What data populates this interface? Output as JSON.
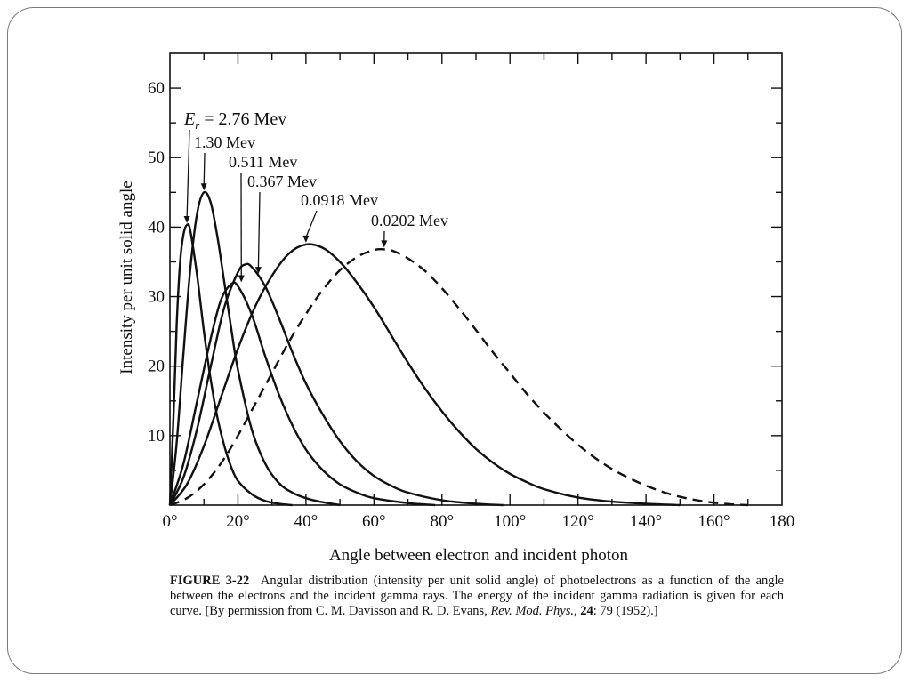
{
  "chart_data": {
    "type": "line",
    "title": "",
    "xlabel": "Angle between electron and incident photon",
    "ylabel": "Intensity per unit solid angle",
    "xlim": [
      0,
      180
    ],
    "ylim": [
      0,
      65
    ],
    "x_ticks": [
      0,
      20,
      40,
      60,
      80,
      100,
      120,
      140,
      160,
      180
    ],
    "x_tick_labels": [
      "0°",
      "20°",
      "40°",
      "60°",
      "80°",
      "100°",
      "120°",
      "140°",
      "160°",
      "180"
    ],
    "y_ticks": [
      10,
      20,
      30,
      40,
      50,
      60
    ],
    "y_tick_labels": [
      "10",
      "20",
      "30",
      "40",
      "50",
      "60"
    ],
    "grid": false,
    "series": [
      {
        "name": "E_r = 2.76 Mev",
        "style": "solid",
        "points": [
          [
            0,
            0
          ],
          [
            1,
            12
          ],
          [
            2,
            26
          ],
          [
            3,
            35
          ],
          [
            4,
            39
          ],
          [
            5,
            40.3
          ],
          [
            6,
            39.5
          ],
          [
            8,
            33
          ],
          [
            10,
            25
          ],
          [
            12,
            18
          ],
          [
            14,
            12.5
          ],
          [
            16,
            8.5
          ],
          [
            18,
            5.5
          ],
          [
            20,
            3.5
          ],
          [
            24,
            1.6
          ],
          [
            28,
            0.6
          ],
          [
            32,
            0.2
          ],
          [
            36,
            0
          ]
        ]
      },
      {
        "name": "1.30 Mev",
        "style": "solid",
        "points": [
          [
            0,
            0
          ],
          [
            2,
            9
          ],
          [
            4,
            22
          ],
          [
            6,
            34
          ],
          [
            8,
            42
          ],
          [
            10,
            45
          ],
          [
            12,
            43.5
          ],
          [
            14,
            38.5
          ],
          [
            16,
            32
          ],
          [
            18,
            25.5
          ],
          [
            20,
            19.5
          ],
          [
            24,
            11
          ],
          [
            28,
            6
          ],
          [
            32,
            3.2
          ],
          [
            36,
            1.8
          ],
          [
            40,
            1
          ],
          [
            44,
            0.5
          ],
          [
            50,
            0
          ]
        ]
      },
      {
        "name": "0.511 Mev",
        "style": "solid",
        "points": [
          [
            0,
            0
          ],
          [
            4,
            6
          ],
          [
            8,
            15
          ],
          [
            12,
            24
          ],
          [
            15,
            29.5
          ],
          [
            18,
            31.8
          ],
          [
            20,
            31.5
          ],
          [
            24,
            27.5
          ],
          [
            28,
            21.5
          ],
          [
            32,
            16
          ],
          [
            36,
            11.5
          ],
          [
            40,
            8
          ],
          [
            45,
            5
          ],
          [
            50,
            3
          ],
          [
            55,
            1.8
          ],
          [
            60,
            1
          ],
          [
            70,
            0.3
          ],
          [
            78,
            0
          ]
        ]
      },
      {
        "name": "0.367 Mev",
        "style": "solid",
        "points": [
          [
            0,
            0
          ],
          [
            4,
            4
          ],
          [
            8,
            11
          ],
          [
            12,
            20
          ],
          [
            16,
            28.5
          ],
          [
            20,
            33.5
          ],
          [
            22,
            34.6
          ],
          [
            24,
            34.3
          ],
          [
            28,
            31.5
          ],
          [
            32,
            27
          ],
          [
            36,
            22
          ],
          [
            40,
            17.5
          ],
          [
            45,
            13
          ],
          [
            50,
            9.2
          ],
          [
            55,
            6.3
          ],
          [
            60,
            4.2
          ],
          [
            65,
            2.8
          ],
          [
            70,
            1.8
          ],
          [
            80,
            0.7
          ],
          [
            90,
            0.2
          ],
          [
            98,
            0
          ]
        ]
      },
      {
        "name": "0.0918 Mev",
        "style": "solid",
        "points": [
          [
            0,
            0
          ],
          [
            5,
            3
          ],
          [
            10,
            8.5
          ],
          [
            15,
            15.5
          ],
          [
            20,
            22.5
          ],
          [
            25,
            28.5
          ],
          [
            30,
            33
          ],
          [
            35,
            36.2
          ],
          [
            40,
            37.5
          ],
          [
            45,
            37
          ],
          [
            50,
            35
          ],
          [
            55,
            32
          ],
          [
            60,
            28.5
          ],
          [
            65,
            24.5
          ],
          [
            70,
            20.5
          ],
          [
            75,
            16.8
          ],
          [
            80,
            13.5
          ],
          [
            85,
            10.6
          ],
          [
            90,
            8.1
          ],
          [
            95,
            6.1
          ],
          [
            100,
            4.5
          ],
          [
            105,
            3.3
          ],
          [
            110,
            2.3
          ],
          [
            120,
            1.1
          ],
          [
            130,
            0.5
          ],
          [
            140,
            0.2
          ],
          [
            150,
            0
          ]
        ]
      },
      {
        "name": "0.0202 Mev",
        "style": "dashed",
        "points": [
          [
            0,
            0
          ],
          [
            5,
            1
          ],
          [
            10,
            3
          ],
          [
            15,
            6
          ],
          [
            20,
            10
          ],
          [
            25,
            14.5
          ],
          [
            30,
            19
          ],
          [
            35,
            23.5
          ],
          [
            40,
            27.5
          ],
          [
            45,
            31
          ],
          [
            50,
            33.8
          ],
          [
            55,
            35.7
          ],
          [
            60,
            36.7
          ],
          [
            63,
            36.8
          ],
          [
            66,
            36.5
          ],
          [
            70,
            35.5
          ],
          [
            75,
            33.7
          ],
          [
            80,
            31.2
          ],
          [
            85,
            28.3
          ],
          [
            90,
            25.2
          ],
          [
            95,
            22
          ],
          [
            100,
            19
          ],
          [
            105,
            16
          ],
          [
            110,
            13.3
          ],
          [
            115,
            10.9
          ],
          [
            120,
            8.7
          ],
          [
            125,
            6.8
          ],
          [
            130,
            5.2
          ],
          [
            135,
            3.9
          ],
          [
            140,
            2.8
          ],
          [
            145,
            1.9
          ],
          [
            150,
            1.2
          ],
          [
            155,
            0.7
          ],
          [
            160,
            0.35
          ],
          [
            165,
            0.12
          ],
          [
            170,
            0
          ]
        ]
      }
    ],
    "annotations": [
      {
        "series": 0,
        "peak_x": 5,
        "peak_y": 40.3
      },
      {
        "series": 1,
        "peak_x": 10,
        "peak_y": 45
      },
      {
        "series": 2,
        "peak_x": 21,
        "peak_y": 31.8
      },
      {
        "series": 3,
        "peak_x": 26,
        "peak_y": 33
      },
      {
        "series": 4,
        "peak_x": 40,
        "peak_y": 37.5
      },
      {
        "series": 5,
        "peak_x": 63,
        "peak_y": 36.8
      }
    ]
  },
  "labels": {
    "e_symbol": "E",
    "e_sub": "r",
    "e_rest": " = 2.76 Mev",
    "l1": "1.30 Mev",
    "l2": "0.511 Mev",
    "l3": "0.367 Mev",
    "l4": "0.0918 Mev",
    "l5": "0.0202 Mev"
  },
  "caption": {
    "fig": "FIGURE 3-22",
    "text1": "Angular distribution (intensity per unit solid angle) of photoelectrons as a function of the angle between the electrons and the incident gamma rays. The energy of the incident gamma radiation is given for each curve. [By permission from C. M. Davisson and R. D. Evans, ",
    "journal": "Rev. Mod. Phys.",
    "vol": "24",
    "text2": ": 79 (1952).]"
  }
}
